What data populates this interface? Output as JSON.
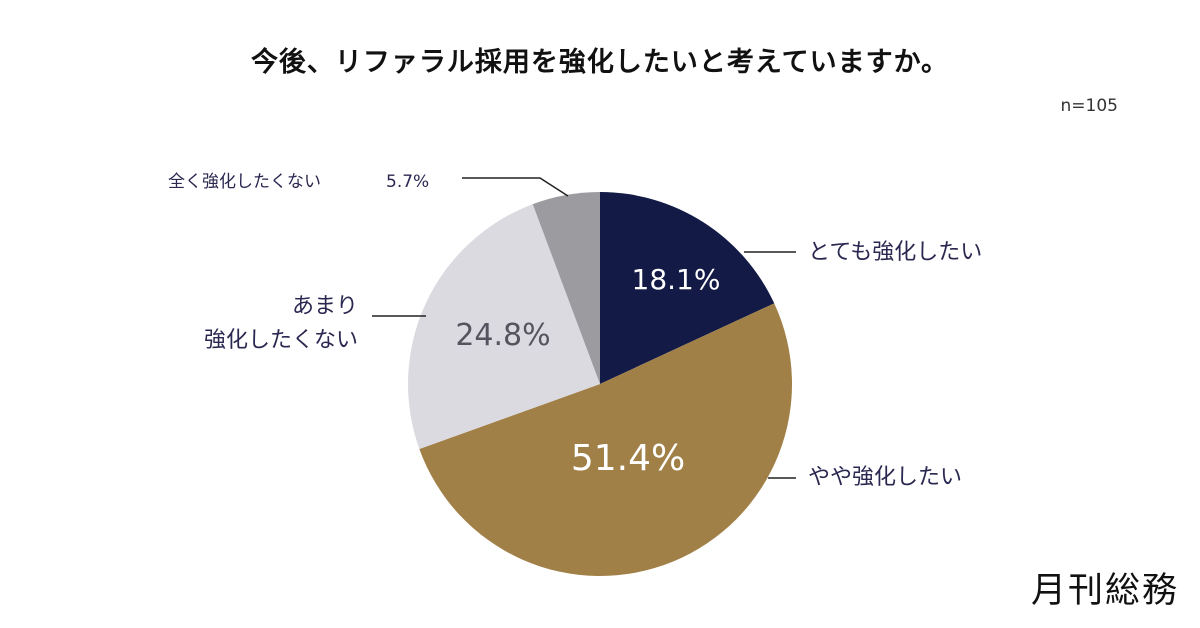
{
  "title": "今後、リファラル採用を強化したいと考えていますか。",
  "sample_size": "n=105",
  "brand": "月刊総務",
  "chart_data": {
    "type": "pie",
    "title": "今後、リファラル採用を強化したいと考えていますか。",
    "slices": [
      {
        "label": "とても強化したい",
        "value": 18.1,
        "value_label": "18.1%",
        "color": "#131a45",
        "text_color": "#ffffff"
      },
      {
        "label": "やや強化したい",
        "value": 51.4,
        "value_label": "51.4%",
        "color": "#a08047",
        "text_color": "#ffffff"
      },
      {
        "label_lines": [
          "あまり",
          "強化したくない"
        ],
        "value": 24.8,
        "value_label": "24.8%",
        "color": "#dcdae1",
        "text_color": "#55545e"
      },
      {
        "label": "全く強化したくない",
        "value": 5.7,
        "value_label": "5.7%",
        "color": "#9c9ba0",
        "text_color": "#2a2850"
      }
    ]
  }
}
